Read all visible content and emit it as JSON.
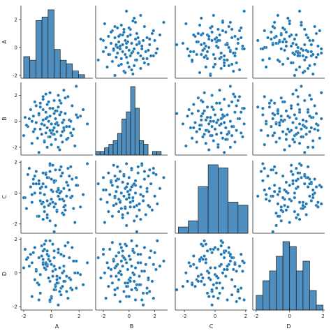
{
  "chart_data": {
    "type": "pairplot",
    "variables": [
      "A",
      "B",
      "C",
      "D"
    ],
    "point_color": "#1f77b4",
    "bar_color": "#4f8fc0",
    "ranges": {
      "A": [
        -2.2,
        3.0
      ],
      "B": [
        -2.6,
        3.0
      ],
      "C": [
        -2.6,
        2.1
      ],
      "D": [
        -2.2,
        2.1
      ]
    },
    "ticks": {
      "A": [
        -2,
        0,
        2
      ],
      "B": [
        -2,
        0,
        2
      ],
      "C": [
        -2,
        0,
        2
      ],
      "D": [
        -2,
        0,
        2
      ]
    },
    "histograms": {
      "A": {
        "edges": [
          -2.0,
          -1.56,
          -1.12,
          -0.68,
          -0.24,
          0.2,
          0.64,
          1.08,
          1.52,
          1.96,
          2.4
        ],
        "counts": [
          6,
          5,
          16,
          17,
          19,
          8,
          5,
          4,
          2,
          1
        ]
      },
      "B": {
        "edges": [
          -2.6,
          -2.26,
          -1.92,
          -1.58,
          -1.24,
          -0.9,
          -0.56,
          -0.22,
          0.12,
          0.46,
          0.8,
          1.14,
          1.48,
          1.82,
          2.16,
          2.5
        ],
        "counts": [
          1,
          1,
          2,
          3,
          4,
          6,
          10,
          12,
          19,
          13,
          4,
          3,
          0,
          1,
          1
        ]
      },
      "C": {
        "edges": [
          -2.4,
          -1.75,
          -1.1,
          -0.45,
          0.2,
          0.85,
          1.5,
          2.15
        ],
        "counts": [
          2,
          4,
          15,
          22,
          21,
          10,
          9
        ]
      },
      "D": {
        "edges": [
          -2.0,
          -1.6,
          -1.2,
          -0.8,
          -0.4,
          0.0,
          0.4,
          0.8,
          1.2,
          1.6,
          2.0
        ],
        "counts": [
          3,
          6,
          8,
          11,
          14,
          13,
          8,
          10,
          4,
          1
        ]
      }
    },
    "points": [
      {
        "A": 1.8,
        "B": 2.7,
        "C": 1.0,
        "D": 0.7
      },
      {
        "A": 0.9,
        "B": 2.4,
        "C": 0.3,
        "D": 0.4
      },
      {
        "A": -0.1,
        "B": 2.2,
        "C": -0.7,
        "D": 1.9
      },
      {
        "A": 0.5,
        "B": 2.0,
        "C": -0.2,
        "D": 1.2
      },
      {
        "A": 1.2,
        "B": 1.9,
        "C": 1.6,
        "D": -1.5
      },
      {
        "A": -0.6,
        "B": 1.7,
        "C": 0.6,
        "D": 1.3
      },
      {
        "A": 0.2,
        "B": 1.6,
        "C": -0.9,
        "D": 0.9
      },
      {
        "A": -1.2,
        "B": 1.5,
        "C": 1.1,
        "D": -0.4
      },
      {
        "A": 0.7,
        "B": 1.4,
        "C": 0.1,
        "D": -0.9
      },
      {
        "A": -0.3,
        "B": 1.3,
        "C": -1.4,
        "D": 0.5
      },
      {
        "A": 1.5,
        "B": 1.2,
        "C": 0.9,
        "D": 1.5
      },
      {
        "A": -0.8,
        "B": 1.1,
        "C": -0.5,
        "D": -1.2
      },
      {
        "A": 0.1,
        "B": 1.0,
        "C": 1.8,
        "D": 0.1
      },
      {
        "A": 2.3,
        "B": 0.9,
        "C": -0.1,
        "D": -0.7
      },
      {
        "A": -1.5,
        "B": 0.9,
        "C": 0.4,
        "D": 1.1
      },
      {
        "A": 0.4,
        "B": 0.8,
        "C": -1.1,
        "D": -0.2
      },
      {
        "A": -0.4,
        "B": 0.7,
        "C": 1.3,
        "D": 0.6
      },
      {
        "A": 1.0,
        "B": 0.6,
        "C": -0.8,
        "D": 1.6
      },
      {
        "A": -0.9,
        "B": 0.5,
        "C": 0.8,
        "D": -1.6
      },
      {
        "A": 0.6,
        "B": 0.5,
        "C": 0.0,
        "D": 0.3
      },
      {
        "A": -0.1,
        "B": 0.4,
        "C": -1.8,
        "D": -0.5
      },
      {
        "A": 1.9,
        "B": 0.3,
        "C": 0.5,
        "D": 0.0
      },
      {
        "A": -1.9,
        "B": 0.3,
        "C": -0.3,
        "D": 1.4
      },
      {
        "A": 0.3,
        "B": 0.2,
        "C": 1.5,
        "D": -1.0
      },
      {
        "A": -0.6,
        "B": 0.1,
        "C": -0.6,
        "D": 0.8
      },
      {
        "A": 1.3,
        "B": 0.1,
        "C": 0.2,
        "D": -0.3
      },
      {
        "A": -0.2,
        "B": 0.0,
        "C": 1.0,
        "D": 1.0
      },
      {
        "A": 0.8,
        "B": -0.1,
        "C": -1.3,
        "D": -0.8
      },
      {
        "A": -1.1,
        "B": -0.1,
        "C": 0.6,
        "D": 0.2
      },
      {
        "A": 0.0,
        "B": -0.2,
        "C": -0.4,
        "D": -1.4
      },
      {
        "A": 2.6,
        "B": -0.2,
        "C": 1.9,
        "D": 0.6
      },
      {
        "A": -0.5,
        "B": -0.3,
        "C": -0.9,
        "D": 1.7
      },
      {
        "A": 0.5,
        "B": -0.3,
        "C": 0.3,
        "D": -0.6
      },
      {
        "A": -1.7,
        "B": -0.4,
        "C": 1.2,
        "D": 0.9
      },
      {
        "A": 1.1,
        "B": -0.4,
        "C": -0.2,
        "D": -1.1
      },
      {
        "A": -0.3,
        "B": -0.5,
        "C": -1.6,
        "D": 0.4
      },
      {
        "A": 0.2,
        "B": -0.5,
        "C": 0.7,
        "D": 1.3
      },
      {
        "A": -0.8,
        "B": -0.6,
        "C": 0.0,
        "D": -0.1
      },
      {
        "A": 1.6,
        "B": -0.6,
        "C": -1.0,
        "D": 0.7
      },
      {
        "A": -0.1,
        "B": -0.7,
        "C": 1.4,
        "D": -1.7
      },
      {
        "A": 0.9,
        "B": -0.7,
        "C": -0.5,
        "D": 0.1
      },
      {
        "A": -1.3,
        "B": -0.8,
        "C": 0.9,
        "D": 1.2
      },
      {
        "A": 0.4,
        "B": -0.8,
        "C": -1.2,
        "D": -0.4
      },
      {
        "A": -0.4,
        "B": -0.9,
        "C": 0.4,
        "D": 0.5
      },
      {
        "A": 1.4,
        "B": -0.9,
        "C": 1.7,
        "D": -0.9
      },
      {
        "A": -0.7,
        "B": -1.0,
        "C": -0.7,
        "D": 1.0
      },
      {
        "A": 0.1,
        "B": -1.0,
        "C": 0.1,
        "D": -0.2
      },
      {
        "A": -2.0,
        "B": -1.1,
        "C": -0.3,
        "D": 0.3
      },
      {
        "A": 0.7,
        "B": -1.1,
        "C": 1.1,
        "D": -1.3
      },
      {
        "A": -0.2,
        "B": -1.2,
        "C": -0.8,
        "D": 0.8
      },
      {
        "A": 1.2,
        "B": -1.3,
        "C": 0.5,
        "D": 1.8
      },
      {
        "A": -1.0,
        "B": -1.3,
        "C": -1.5,
        "D": -0.6
      },
      {
        "A": 0.3,
        "B": -1.4,
        "C": 0.8,
        "D": 0.2
      },
      {
        "A": -0.5,
        "B": -1.5,
        "C": -0.1,
        "D": 1.4
      },
      {
        "A": 0.8,
        "B": -1.6,
        "C": 1.3,
        "D": -0.8
      },
      {
        "A": -1.4,
        "B": -1.7,
        "C": -0.6,
        "D": 0.6
      },
      {
        "A": 0.0,
        "B": -1.8,
        "C": 0.2,
        "D": -1.5
      },
      {
        "A": 1.7,
        "B": -1.9,
        "C": -1.9,
        "D": 0.0
      },
      {
        "A": -0.3,
        "B": -2.0,
        "C": 1.0,
        "D": 1.1
      },
      {
        "A": 0.6,
        "B": -2.2,
        "C": -0.4,
        "D": -0.3
      },
      {
        "A": -0.9,
        "B": -2.4,
        "C": 0.6,
        "D": 0.9
      },
      {
        "A": 0.2,
        "B": 0.6,
        "C": -2.5,
        "D": -1.0
      },
      {
        "A": -1.6,
        "B": 0.2,
        "C": 1.6,
        "D": 0.4
      },
      {
        "A": 1.0,
        "B": 1.8,
        "C": -1.1,
        "D": -0.5
      },
      {
        "A": -0.7,
        "B": -0.2,
        "C": 0.4,
        "D": 1.6
      },
      {
        "A": 0.5,
        "B": 1.1,
        "C": -0.2,
        "D": -1.9
      },
      {
        "A": -0.1,
        "B": -1.2,
        "C": 1.8,
        "D": 0.7
      },
      {
        "A": 2.1,
        "B": 0.4,
        "C": -0.9,
        "D": -0.1
      },
      {
        "A": -1.2,
        "B": -0.6,
        "C": 0.0,
        "D": 1.5
      },
      {
        "A": 0.3,
        "B": 0.8,
        "C": -0.7,
        "D": -0.7
      },
      {
        "A": -0.4,
        "B": 2.1,
        "C": 1.2,
        "D": 0.2
      },
      {
        "A": 0.9,
        "B": -0.5,
        "C": -1.4,
        "D": 1.0
      },
      {
        "A": -0.8,
        "B": 1.4,
        "C": 0.3,
        "D": -1.2
      },
      {
        "A": 0.0,
        "B": -0.9,
        "C": 0.9,
        "D": 0.5
      },
      {
        "A": 1.4,
        "B": 0.0,
        "C": -0.3,
        "D": -0.4
      },
      {
        "A": -1.8,
        "B": -0.3,
        "C": -1.0,
        "D": 0.8
      },
      {
        "A": 0.6,
        "B": 1.6,
        "C": 1.5,
        "D": -1.1
      },
      {
        "A": -0.3,
        "B": 0.3,
        "C": -0.5,
        "D": 1.3
      },
      {
        "A": 1.1,
        "B": -1.4,
        "C": 0.7,
        "D": -0.2
      },
      {
        "A": -0.6,
        "B": 0.9,
        "C": -1.7,
        "D": 0.6
      },
      {
        "A": 0.4,
        "B": -0.1,
        "C": 0.1,
        "D": -0.6
      },
      {
        "A": -1.1,
        "B": 1.2,
        "C": 1.4,
        "D": 0.1
      },
      {
        "A": 0.1,
        "B": -0.7,
        "C": -0.6,
        "D": 1.7
      },
      {
        "A": 1.8,
        "B": 0.5,
        "C": 0.5,
        "D": -0.9
      },
      {
        "A": -0.5,
        "B": -1.6,
        "C": -1.2,
        "D": 0.3
      },
      {
        "A": 0.7,
        "B": 0.7,
        "C": 1.7,
        "D": 1.1
      },
      {
        "A": -1.4,
        "B": 0.0,
        "C": -0.1,
        "D": -1.4
      },
      {
        "A": 0.2,
        "B": -1.0,
        "C": 0.8,
        "D": 0.4
      },
      {
        "A": -0.2,
        "B": 1.5,
        "C": -0.8,
        "D": -0.3
      },
      {
        "A": 1.3,
        "B": -0.4,
        "C": 1.1,
        "D": 0.9
      },
      {
        "A": -0.9,
        "B": 0.6,
        "C": -1.5,
        "D": -0.7
      },
      {
        "A": 0.5,
        "B": -2.0,
        "C": 0.2,
        "D": 1.4
      },
      {
        "A": -0.1,
        "B": 1.0,
        "C": 1.9,
        "D": -1.6
      },
      {
        "A": 0.8,
        "B": -0.8,
        "C": -0.4,
        "D": 0.0
      },
      {
        "A": -1.3,
        "B": 0.4,
        "C": 0.6,
        "D": 1.2
      },
      {
        "A": 0.3,
        "B": -0.2,
        "C": -2.1,
        "D": -0.8
      },
      {
        "A": -0.6,
        "B": 1.9,
        "C": 1.3,
        "D": 0.5
      },
      {
        "A": 1.5,
        "B": -1.1,
        "C": -0.2,
        "D": -1.0
      },
      {
        "A": -0.4,
        "B": 0.2,
        "C": 0.4,
        "D": 1.9
      },
      {
        "A": 0.9,
        "B": 0.1,
        "C": -0.9,
        "D": -0.5
      }
    ]
  }
}
